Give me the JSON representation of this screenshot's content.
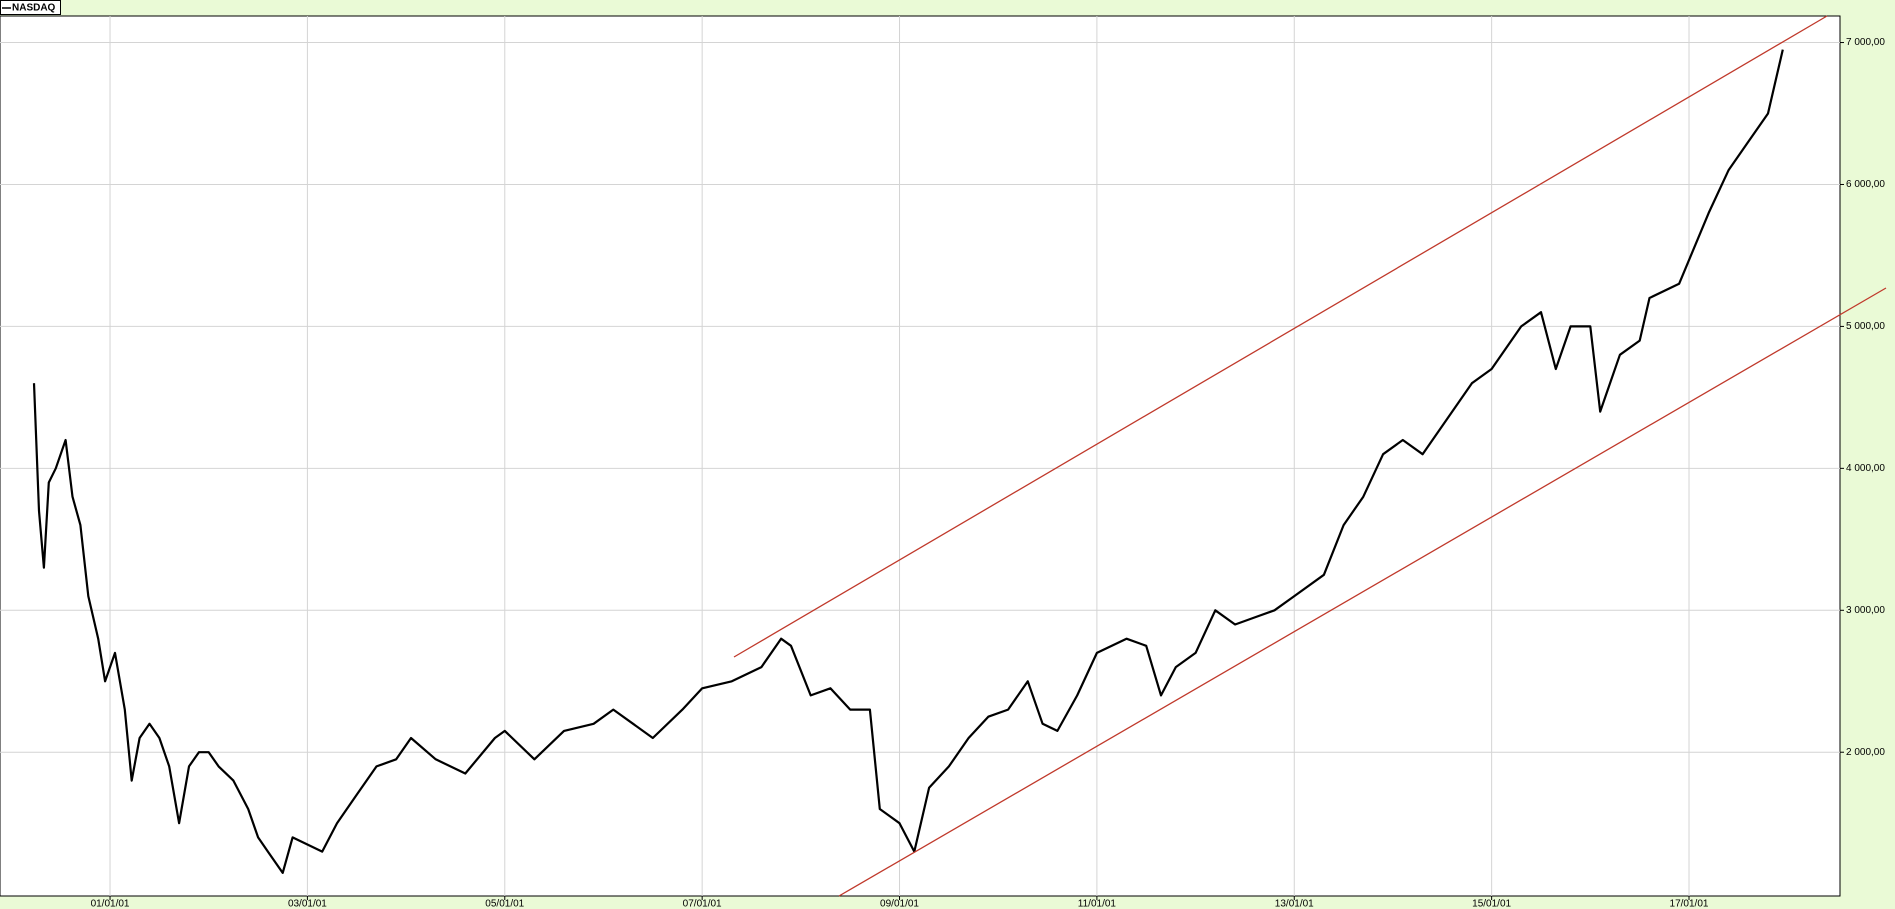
{
  "chart_data": {
    "type": "line",
    "series": [
      {
        "name": "NASDAQ",
        "color": "#000000",
        "values": [
          4600,
          3700,
          3300,
          3900,
          4000,
          4200,
          3800,
          3600,
          3100,
          2800,
          2500,
          2700,
          2300,
          1800,
          2100,
          2200,
          2100,
          1900,
          1500,
          1900,
          2000,
          2000,
          1900,
          1800,
          1600,
          1400,
          1300,
          1150,
          1400,
          1350,
          1300,
          1500,
          1700,
          1900,
          1950,
          2100,
          1950,
          1850,
          2100,
          2150,
          1950,
          2150,
          2200,
          2300,
          2200,
          2100,
          2300,
          2450,
          2500,
          2600,
          2800,
          2750,
          2400,
          2450,
          2300,
          2300,
          1600,
          1550,
          1500,
          1300,
          1750,
          1900,
          2100,
          2250,
          2300,
          2500,
          2200,
          2150,
          2400,
          2700,
          2800,
          2750,
          2400,
          2600,
          2700,
          3000,
          2900,
          2950,
          3000,
          3100,
          3250,
          3600,
          3800,
          4100,
          4200,
          4100,
          4400,
          4600,
          4700,
          5000,
          5100,
          4700,
          5000,
          5000,
          4400,
          4800,
          4900,
          5200,
          5300,
          5800,
          6100,
          6300,
          6500,
          6950
        ]
      }
    ],
    "x": [
      2000.23,
      2000.28,
      2000.33,
      2000.38,
      2000.45,
      2000.55,
      2000.62,
      2000.7,
      2000.78,
      2000.88,
      2000.95,
      2001.05,
      2001.15,
      2001.22,
      2001.3,
      2001.4,
      2001.5,
      2001.6,
      2001.7,
      2001.8,
      2001.9,
      2002.0,
      2002.1,
      2002.25,
      2002.4,
      2002.5,
      2002.6,
      2002.75,
      2002.85,
      2003.0,
      2003.15,
      2003.3,
      2003.5,
      2003.7,
      2003.9,
      2004.05,
      2004.3,
      2004.6,
      2004.9,
      2005.0,
      2005.3,
      2005.6,
      2005.9,
      2006.1,
      2006.3,
      2006.5,
      2006.8,
      2007.0,
      2007.3,
      2007.6,
      2007.8,
      2007.9,
      2008.1,
      2008.3,
      2008.5,
      2008.7,
      2008.8,
      2008.9,
      2009.0,
      2009.15,
      2009.3,
      2009.5,
      2009.7,
      2009.9,
      2010.1,
      2010.3,
      2010.45,
      2010.6,
      2010.8,
      2011.0,
      2011.3,
      2011.5,
      2011.65,
      2011.8,
      2012.0,
      2012.2,
      2012.4,
      2012.6,
      2012.8,
      2013.0,
      2013.3,
      2013.5,
      2013.7,
      2013.9,
      2014.1,
      2014.3,
      2014.6,
      2014.8,
      2015.0,
      2015.3,
      2015.5,
      2015.65,
      2015.8,
      2016.0,
      2016.1,
      2016.3,
      2016.5,
      2016.6,
      2016.9,
      2017.2,
      2017.4,
      2017.6,
      2017.8,
      2017.95
    ],
    "xlim": [
      1999.885,
      2018.53
    ],
    "xticks": [
      {
        "value": 2001,
        "label": "01/01/01"
      },
      {
        "value": 2003,
        "label": "03/01/01"
      },
      {
        "value": 2005,
        "label": "05/01/01"
      },
      {
        "value": 2007,
        "label": "07/01/01"
      },
      {
        "value": 2009,
        "label": "09/01/01"
      },
      {
        "value": 2011,
        "label": "11/01/01"
      },
      {
        "value": 2013,
        "label": "13/01/01"
      },
      {
        "value": 2015,
        "label": "15/01/01"
      },
      {
        "value": 2017,
        "label": "17/01/01"
      }
    ],
    "ylim": [
      987,
      7187
    ],
    "yticks": [
      {
        "value": 2000,
        "label": "2 000,00"
      },
      {
        "value": 3000,
        "label": "3 000,00"
      },
      {
        "value": 4000,
        "label": "4 000,00"
      },
      {
        "value": 5000,
        "label": "5 000,00"
      },
      {
        "value": 6000,
        "label": "6 000,00"
      },
      {
        "value": 7000,
        "label": "7 000,00"
      }
    ],
    "grid": true
  }
}
